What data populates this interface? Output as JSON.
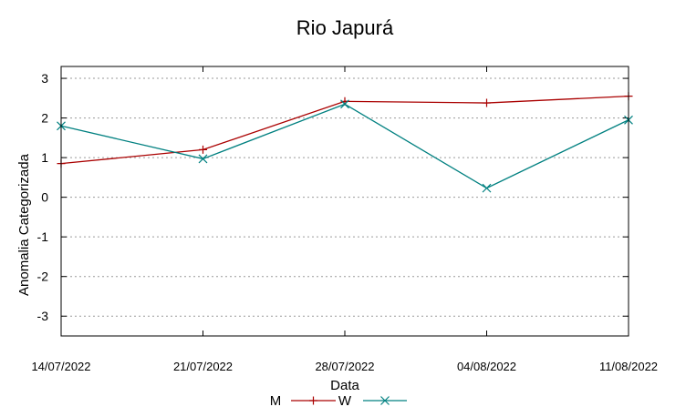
{
  "chart_data": {
    "type": "line",
    "title": "Rio Japurá",
    "xlabel": "Data",
    "ylabel": "Anomalia Categorizada",
    "categories": [
      "14/07/2022",
      "21/07/2022",
      "28/07/2022",
      "04/08/2022",
      "11/08/2022"
    ],
    "yticks": [
      "-3",
      "-2",
      "-1",
      "0",
      "1",
      "2",
      "3"
    ],
    "ylim": [
      -3.5,
      3.3
    ],
    "grid": "horizontal dotted",
    "legend_position": "bottom",
    "series": [
      {
        "name": "M",
        "color": "#aa0000",
        "marker": "plus",
        "values": [
          0.85,
          1.2,
          2.42,
          2.38,
          2.55
        ]
      },
      {
        "name": "W",
        "color": "#008080",
        "marker": "x",
        "values": [
          1.8,
          0.97,
          2.35,
          0.23,
          1.95
        ]
      }
    ]
  }
}
